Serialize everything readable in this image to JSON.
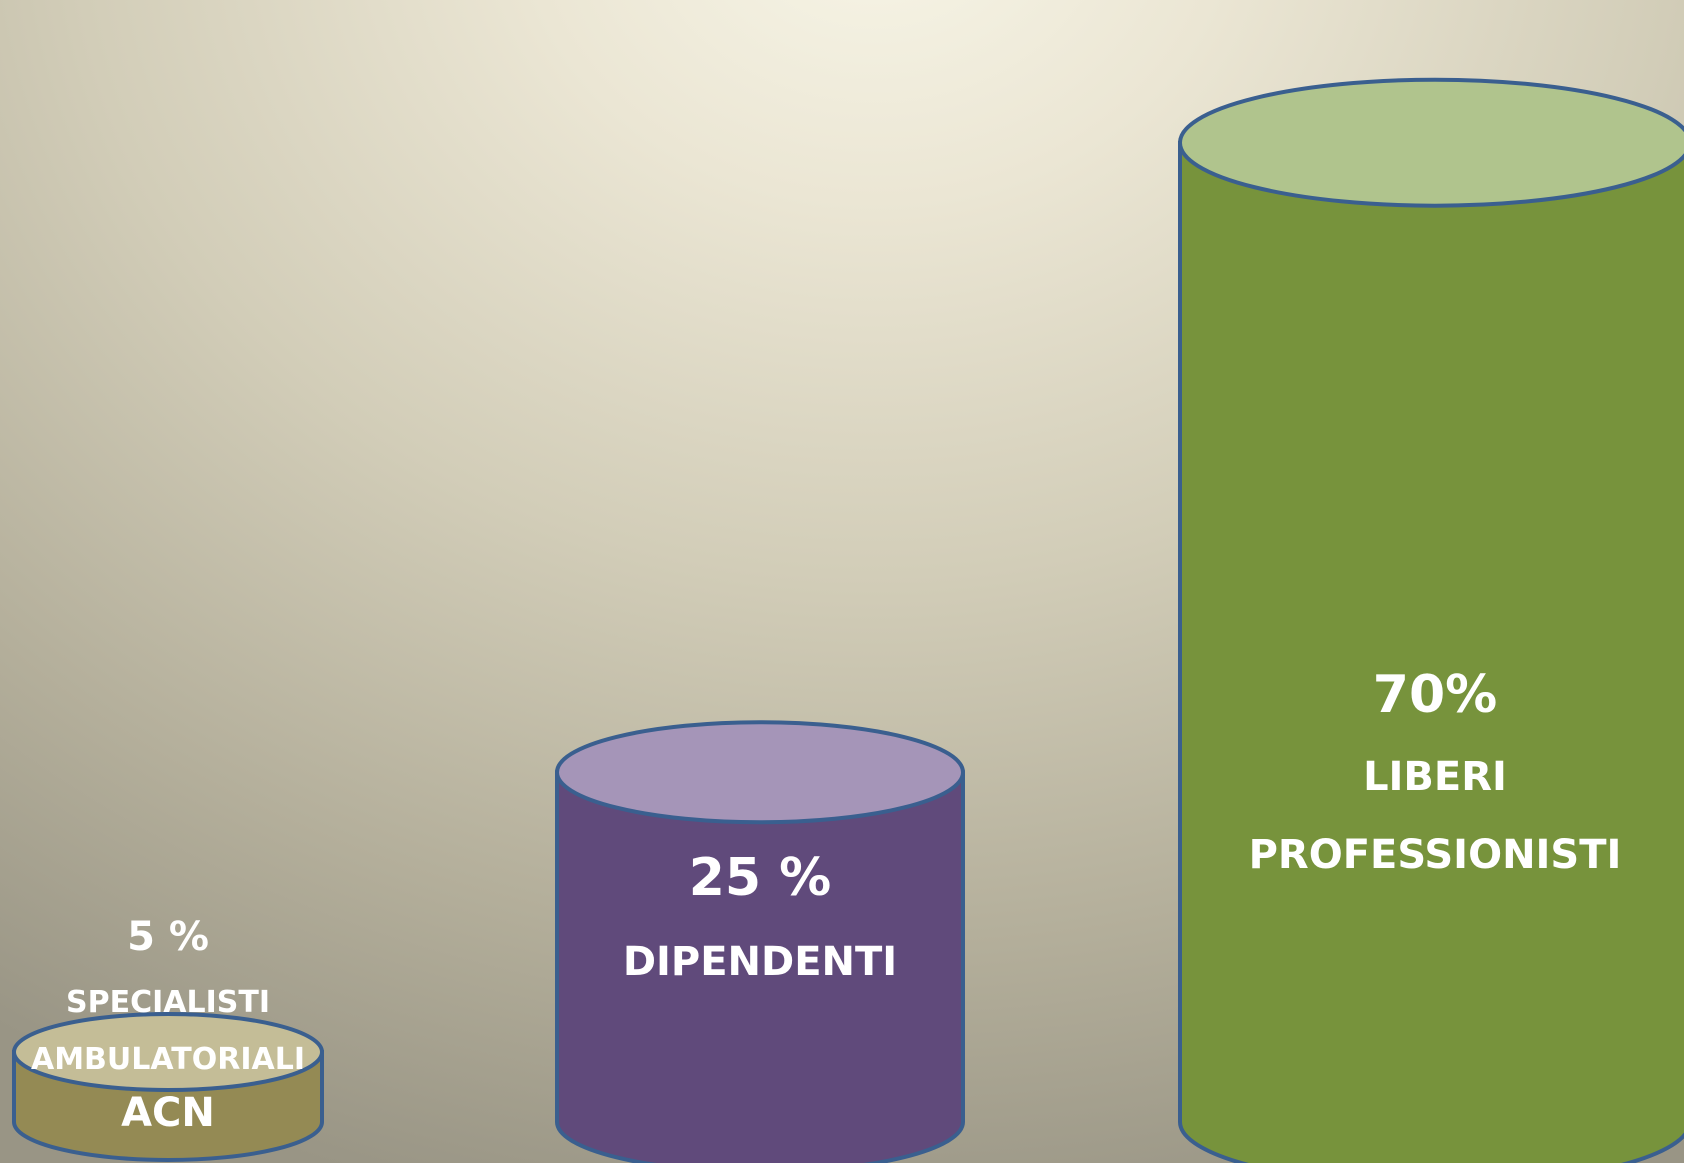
{
  "chart_data": {
    "type": "bar",
    "style": "3d-cylinder",
    "title": "",
    "xlabel": "",
    "ylabel": "",
    "ylim": [
      0,
      70
    ],
    "grid": false,
    "legend": "none",
    "categories": [
      "5 % SPECIALISTI AMBULATORIALI ACN",
      "25 % DIPENDENTI",
      "70% LIBERI PROFESSIONISTI"
    ],
    "values": [
      5,
      25,
      70
    ],
    "bars": [
      {
        "value": 5,
        "value_label": "5 %",
        "label_lines": [
          "SPECIALISTI",
          "AMBULATORIALI",
          "ACN"
        ],
        "body_color": "#948A54",
        "top_color": "#C4BD97"
      },
      {
        "value": 25,
        "value_label": "25 %",
        "label_lines": [
          "DIPENDENTI"
        ],
        "body_color": "#604A7B",
        "top_color": "#A595B8"
      },
      {
        "value": 70,
        "value_label": "70%",
        "label_lines": [
          "LIBERI",
          "PROFESSIONISTI"
        ],
        "body_color": "#77933C",
        "top_color": "#B0C48D"
      }
    ],
    "outline_color": "#3A5F8F"
  }
}
